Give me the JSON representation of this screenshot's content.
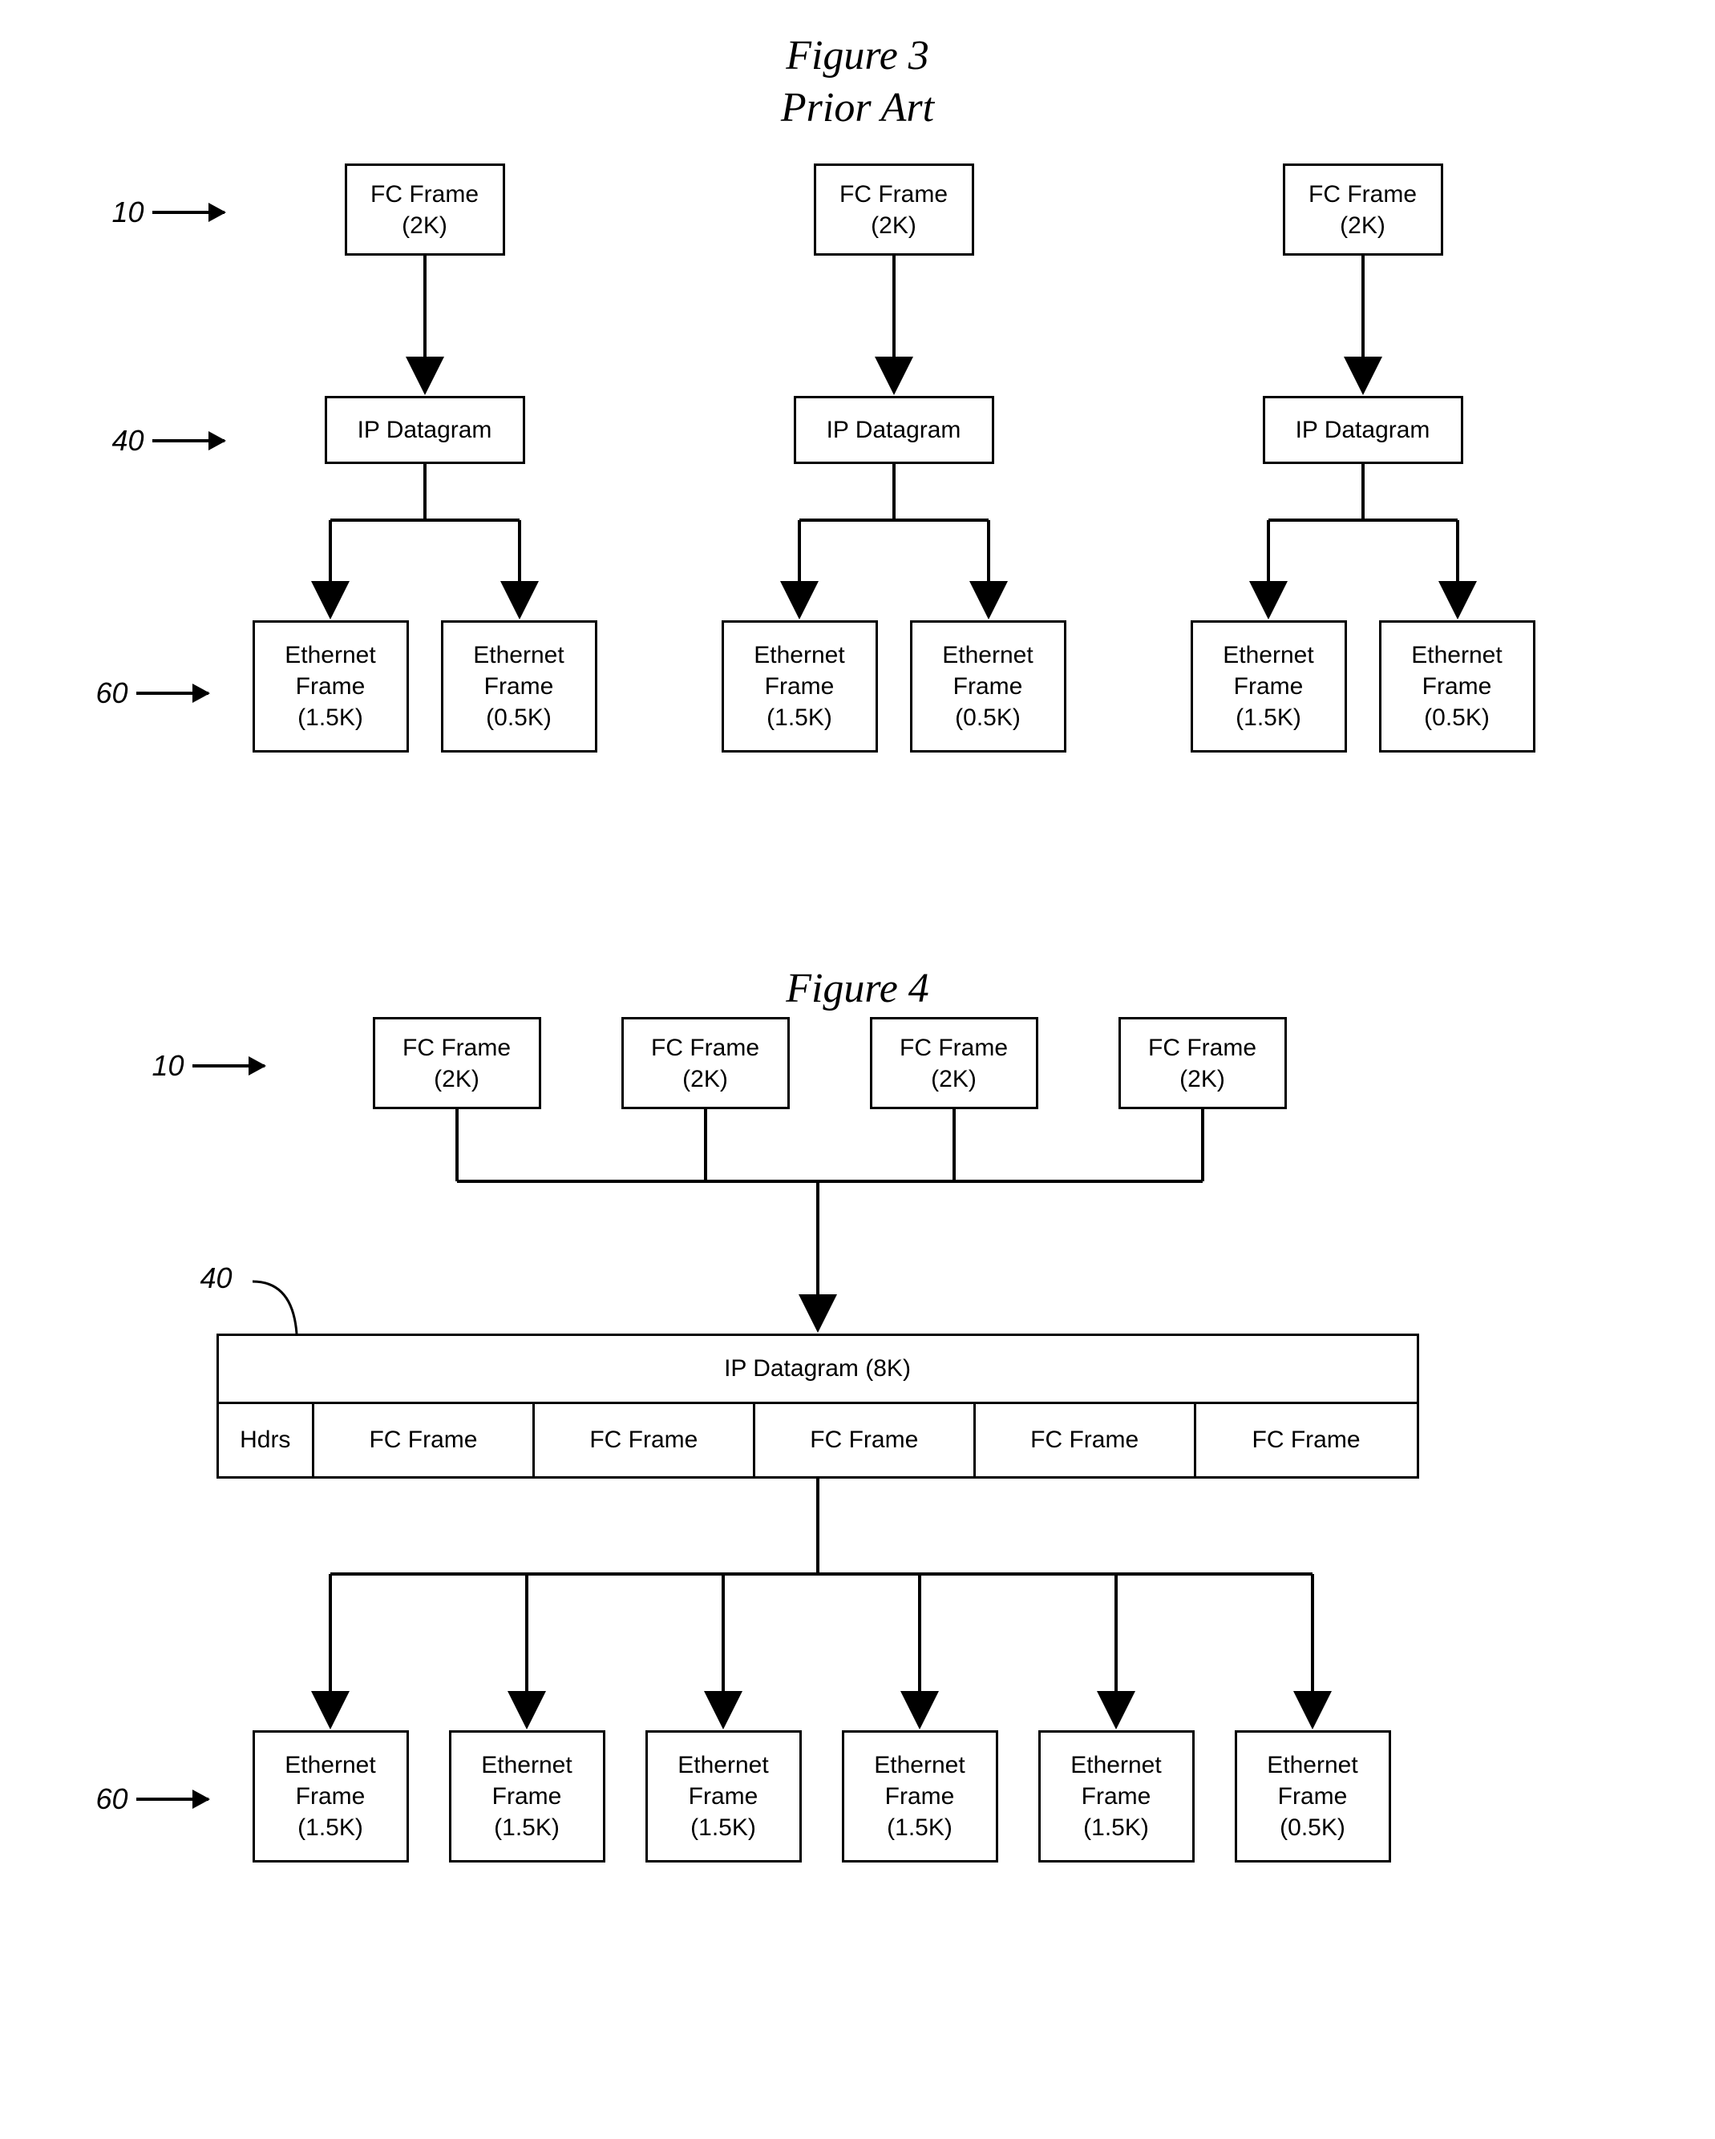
{
  "fig3": {
    "title": "Figure 3",
    "subtitle": "Prior Art",
    "refs": {
      "r10": "10",
      "r40": "40",
      "r60": "60"
    },
    "node_border": "#000000",
    "line_color": "#000000",
    "background": "#ffffff",
    "font_size_box": 30,
    "font_size_title": 52,
    "groups": [
      {
        "fc": "FC Frame\n(2K)",
        "ip": "IP Datagram",
        "eth": [
          "Ethernet\nFrame\n(1.5K)",
          "Ethernet\nFrame\n(0.5K)"
        ]
      },
      {
        "fc": "FC Frame\n(2K)",
        "ip": "IP Datagram",
        "eth": [
          "Ethernet\nFrame\n(1.5K)",
          "Ethernet\nFrame\n(0.5K)"
        ]
      },
      {
        "fc": "FC Frame\n(2K)",
        "ip": "IP Datagram",
        "eth": [
          "Ethernet\nFrame\n(1.5K)",
          "Ethernet\nFrame\n(0.5K)"
        ]
      }
    ]
  },
  "fig4": {
    "title": "Figure 4",
    "refs": {
      "r10": "10",
      "r40": "40",
      "r60": "60"
    },
    "fc_row": [
      "FC Frame\n(2K)",
      "FC Frame\n(2K)",
      "FC Frame\n(2K)",
      "FC Frame\n(2K)"
    ],
    "ip_title": "IP Datagram (8K)",
    "ip_cells": [
      "Hdrs",
      "FC Frame",
      "FC Frame",
      "FC Frame",
      "FC Frame",
      "FC Frame"
    ],
    "ip_cell_widths": [
      120,
      245,
      245,
      245,
      245,
      245
    ],
    "eth_row": [
      "Ethernet\nFrame\n(1.5K)",
      "Ethernet\nFrame\n(1.5K)",
      "Ethernet\nFrame\n(1.5K)",
      "Ethernet\nFrame\n(1.5K)",
      "Ethernet\nFrame\n(1.5K)",
      "Ethernet\nFrame\n(0.5K)"
    ],
    "node_border": "#000000",
    "line_color": "#000000"
  }
}
